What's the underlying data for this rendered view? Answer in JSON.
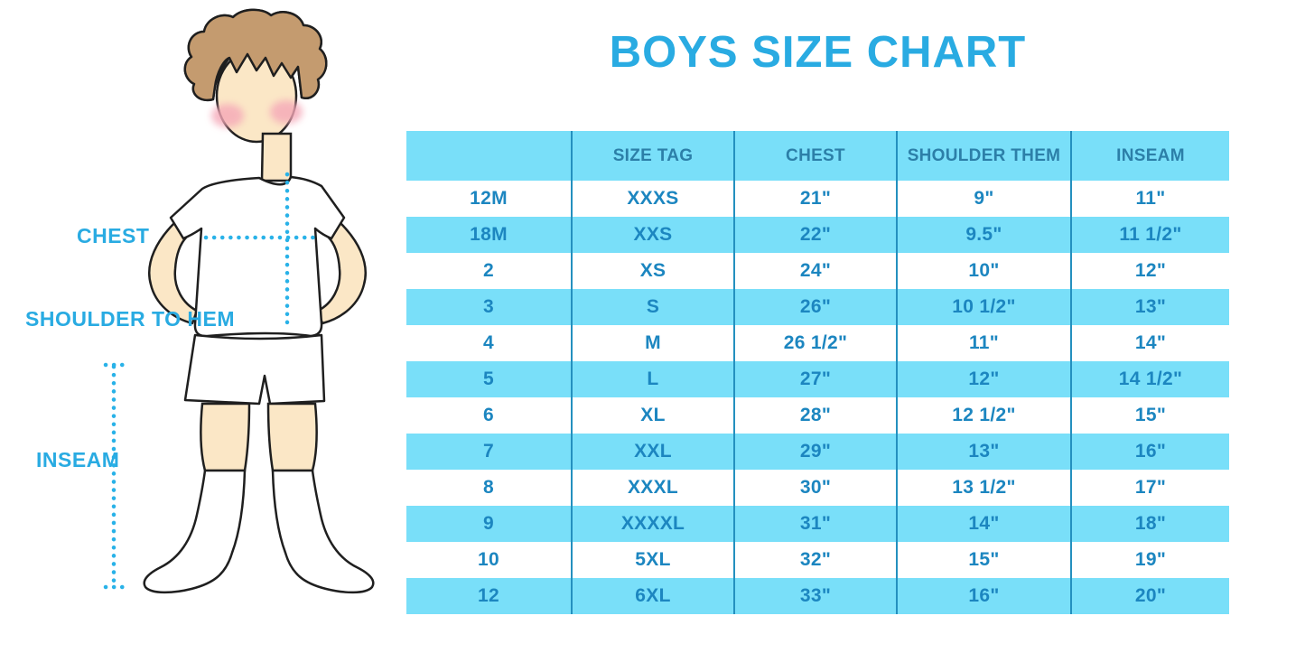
{
  "title": {
    "text": "BOYS SIZE CHART",
    "color": "#29ABE2"
  },
  "figure": {
    "labels": {
      "chest": "CHEST",
      "shoulder_to_hem": "SHOULDER TO HEM",
      "inseam": "INSEAM"
    },
    "colors": {
      "skin": "#FBE7C6",
      "hair": "#C49B6F",
      "cheek": "#F5A8B8",
      "garment": "#FFFFFF",
      "outline": "#1F1F1F",
      "dotted_line": "#29B2E8",
      "label_text": "#29ABE2"
    }
  },
  "chart_data": {
    "type": "table",
    "title": "BOYS SIZE CHART",
    "columns": [
      "",
      "SIZE TAG",
      "CHEST",
      "SHOULDER THEM",
      "INSEAM"
    ],
    "rows": [
      [
        "12M",
        "XXXS",
        "21\"",
        "9\"",
        "11\""
      ],
      [
        "18M",
        "XXS",
        "22\"",
        "9.5\"",
        "11 1/2\""
      ],
      [
        "2",
        "XS",
        "24\"",
        "10\"",
        "12\""
      ],
      [
        "3",
        "S",
        "26\"",
        "10 1/2\"",
        "13\""
      ],
      [
        "4",
        "M",
        "26 1/2\"",
        "11\"",
        "14\""
      ],
      [
        "5",
        "L",
        "27\"",
        "12\"",
        "14 1/2\""
      ],
      [
        "6",
        "XL",
        "28\"",
        "12 1/2\"",
        "15\""
      ],
      [
        "7",
        "XXL",
        "29\"",
        "13\"",
        "16\""
      ],
      [
        "8",
        "XXXL",
        "30\"",
        "13 1/2\"",
        "17\""
      ],
      [
        "9",
        "XXXXL",
        "31\"",
        "14\"",
        "18\""
      ],
      [
        "10",
        "5XL",
        "32\"",
        "15\"",
        "19\""
      ],
      [
        "12",
        "6XL",
        "33\"",
        "16\"",
        "20\""
      ]
    ],
    "style": {
      "header_bg": "#79DFF9",
      "stripe_bg": "#79DFF9",
      "row_bg": "#FFFFFF",
      "divider": "#2490BF",
      "header_text": "#2C7FA8",
      "cell_text": "#1C86C0"
    }
  }
}
